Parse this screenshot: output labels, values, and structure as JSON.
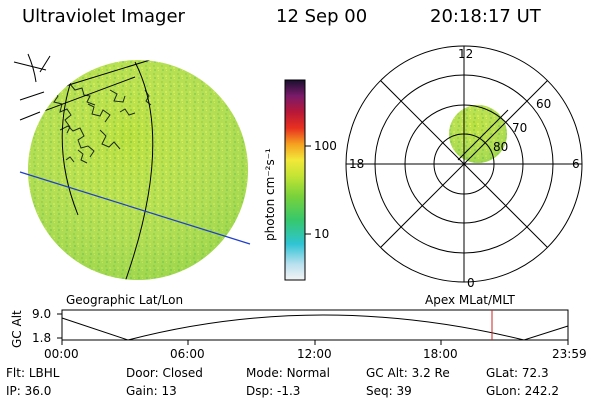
{
  "header": {
    "title": "Ultraviolet Imager",
    "date": "12 Sep 00",
    "time": "20:18:17 UT"
  },
  "colorbar": {
    "label": "photon cm⁻²s⁻¹",
    "ticks": [
      "100",
      "10"
    ]
  },
  "polar": {
    "mlt_labels": [
      "12",
      "18",
      "6",
      "0"
    ],
    "lat_labels": [
      "60",
      "70",
      "80"
    ]
  },
  "captions": {
    "left": "Geographic Lat/Lon",
    "right": "Apex MLat/MLT"
  },
  "altitude_plot": {
    "axis_label": "GC Alt",
    "y_ticks": [
      "9.0",
      "1.8"
    ],
    "x_ticks": [
      "00:00",
      "06:00",
      "12:00",
      "18:00",
      "23:59"
    ]
  },
  "info_row1": [
    {
      "label": "Flt:",
      "value": "LBHL"
    },
    {
      "label": "Door:",
      "value": "Closed"
    },
    {
      "label": "Mode:",
      "value": "Normal"
    },
    {
      "label": "GC Alt:",
      "value": "3.2 Re"
    },
    {
      "label": "GLat:",
      "value": "72.3"
    }
  ],
  "info_row2": [
    {
      "label": "IP:",
      "value": "36.0"
    },
    {
      "label": "Gain:",
      "value": "13"
    },
    {
      "label": "Dsp:",
      "value": "-1.3"
    },
    {
      "label": "Seq:",
      "value": "39"
    },
    {
      "label": "GLon:",
      "value": "242.2"
    }
  ],
  "colors": {
    "earth_fill": "#b4e23c",
    "grid_line": "#000000",
    "terminator": "#1f3fcc",
    "current_time_marker": "#cc2222"
  }
}
